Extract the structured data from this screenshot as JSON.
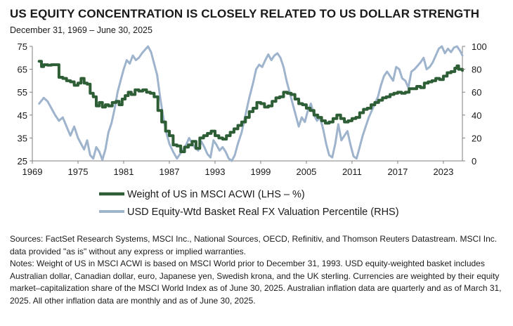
{
  "chart_data": {
    "type": "line",
    "title": "US EQUITY CONCENTRATION IS CLOSELY RELATED TO US DOLLAR STRENGTH",
    "subtitle": "December 31, 1969 – June 30, 2025",
    "x_ticks": [
      "1969",
      "1975",
      "1981",
      "1987",
      "1993",
      "1999",
      "2005",
      "2011",
      "2017",
      "2023"
    ],
    "xlim": [
      1969,
      2025.5
    ],
    "y_left": {
      "ylim": [
        25,
        75
      ],
      "ticks": [
        "25",
        "35",
        "45",
        "55",
        "65",
        "75"
      ]
    },
    "y_right": {
      "ylim": [
        0,
        100
      ],
      "ticks": [
        "0",
        "20",
        "40",
        "60",
        "80",
        "100"
      ]
    },
    "grid": false,
    "legend_position": "bottom",
    "series": [
      {
        "name": "Weight of US in MSCI ACWI (LHS – %)",
        "axis": "left",
        "color": "#2e5e35",
        "points": [
          [
            1969.9,
            68.5
          ],
          [
            1970.2,
            66.2
          ],
          [
            1970.5,
            67.0
          ],
          [
            1971.0,
            66.8
          ],
          [
            1971.5,
            67.0
          ],
          [
            1972.2,
            67.0
          ],
          [
            1972.5,
            61.5
          ],
          [
            1973.0,
            61.0
          ],
          [
            1973.5,
            60.0
          ],
          [
            1974.0,
            59.5
          ],
          [
            1974.5,
            58.0
          ],
          [
            1975.0,
            59.0
          ],
          [
            1975.4,
            61.0
          ],
          [
            1975.8,
            59.0
          ],
          [
            1976.2,
            58.5
          ],
          [
            1976.6,
            54.5
          ],
          [
            1977.0,
            53.0
          ],
          [
            1977.4,
            49.0
          ],
          [
            1977.8,
            50.5
          ],
          [
            1978.2,
            48.5
          ],
          [
            1978.6,
            49.5
          ],
          [
            1979.0,
            49.0
          ],
          [
            1979.5,
            50.5
          ],
          [
            1980.0,
            51.0
          ],
          [
            1980.4,
            49.5
          ],
          [
            1980.8,
            52.0
          ],
          [
            1981.2,
            53.5
          ],
          [
            1981.6,
            55.0
          ],
          [
            1982.0,
            54.0
          ],
          [
            1982.5,
            56.0
          ],
          [
            1983.0,
            55.5
          ],
          [
            1983.5,
            56.0
          ],
          [
            1984.0,
            55.0
          ],
          [
            1984.5,
            54.5
          ],
          [
            1985.0,
            53.0
          ],
          [
            1985.5,
            47.0
          ],
          [
            1986.0,
            42.0
          ],
          [
            1986.5,
            38.0
          ],
          [
            1987.0,
            36.0
          ],
          [
            1987.5,
            32.0
          ],
          [
            1988.0,
            31.5
          ],
          [
            1988.5,
            29.0
          ],
          [
            1989.0,
            31.0
          ],
          [
            1989.5,
            32.0
          ],
          [
            1990.0,
            33.5
          ],
          [
            1990.5,
            30.5
          ],
          [
            1991.0,
            35.0
          ],
          [
            1991.5,
            36.0
          ],
          [
            1992.0,
            37.0
          ],
          [
            1992.5,
            38.0
          ],
          [
            1993.0,
            36.0
          ],
          [
            1993.5,
            35.0
          ],
          [
            1994.0,
            34.5
          ],
          [
            1994.5,
            36.0
          ],
          [
            1995.0,
            37.5
          ],
          [
            1995.5,
            39.0
          ],
          [
            1996.0,
            40.5
          ],
          [
            1996.5,
            42.0
          ],
          [
            1997.0,
            44.0
          ],
          [
            1997.5,
            46.5
          ],
          [
            1998.0,
            48.0
          ],
          [
            1998.5,
            50.5
          ],
          [
            1999.0,
            50.0
          ],
          [
            1999.5,
            48.5
          ],
          [
            2000.0,
            49.0
          ],
          [
            2000.5,
            51.0
          ],
          [
            2001.0,
            52.5
          ],
          [
            2001.5,
            53.0
          ],
          [
            2002.0,
            55.0
          ],
          [
            2002.5,
            54.5
          ],
          [
            2003.0,
            54.0
          ],
          [
            2003.5,
            52.0
          ],
          [
            2004.0,
            50.0
          ],
          [
            2004.5,
            49.5
          ],
          [
            2005.0,
            48.0
          ],
          [
            2005.5,
            47.0
          ],
          [
            2006.0,
            45.0
          ],
          [
            2006.5,
            44.0
          ],
          [
            2007.0,
            42.5
          ],
          [
            2007.5,
            41.5
          ],
          [
            2008.0,
            42.0
          ],
          [
            2008.5,
            43.5
          ],
          [
            2009.0,
            45.0
          ],
          [
            2009.5,
            43.5
          ],
          [
            2010.0,
            42.0
          ],
          [
            2010.5,
            42.5
          ],
          [
            2011.0,
            43.5
          ],
          [
            2011.5,
            44.0
          ],
          [
            2012.0,
            46.0
          ],
          [
            2012.5,
            47.5
          ],
          [
            2013.0,
            48.0
          ],
          [
            2013.5,
            49.5
          ],
          [
            2014.0,
            50.5
          ],
          [
            2014.5,
            51.5
          ],
          [
            2015.0,
            52.5
          ],
          [
            2015.5,
            53.0
          ],
          [
            2016.0,
            54.0
          ],
          [
            2016.5,
            54.5
          ],
          [
            2017.0,
            55.0
          ],
          [
            2017.5,
            54.5
          ],
          [
            2018.0,
            55.0
          ],
          [
            2018.5,
            56.5
          ],
          [
            2019.0,
            56.5
          ],
          [
            2019.5,
            57.5
          ],
          [
            2020.0,
            57.0
          ],
          [
            2020.5,
            59.0
          ],
          [
            2021.0,
            59.5
          ],
          [
            2021.5,
            60.0
          ],
          [
            2022.0,
            61.0
          ],
          [
            2022.5,
            60.5
          ],
          [
            2023.0,
            62.0
          ],
          [
            2023.5,
            63.5
          ],
          [
            2024.0,
            64.0
          ],
          [
            2024.5,
            65.5
          ],
          [
            2024.8,
            66.5
          ],
          [
            2025.0,
            65.0
          ],
          [
            2025.5,
            64.5
          ]
        ]
      },
      {
        "name": "USD Equity-Wtd Basket Real FX Valuation Percentile (RHS)",
        "axis": "right",
        "color": "#9eb3cc",
        "points": [
          [
            1969.9,
            50
          ],
          [
            1970.5,
            55
          ],
          [
            1971.0,
            52
          ],
          [
            1971.5,
            46
          ],
          [
            1972.0,
            40
          ],
          [
            1972.5,
            35
          ],
          [
            1973.0,
            38
          ],
          [
            1973.5,
            30
          ],
          [
            1974.0,
            22
          ],
          [
            1974.5,
            30
          ],
          [
            1975.0,
            20
          ],
          [
            1975.4,
            15
          ],
          [
            1975.8,
            10
          ],
          [
            1976.2,
            18
          ],
          [
            1976.6,
            5
          ],
          [
            1977.0,
            2
          ],
          [
            1977.4,
            12
          ],
          [
            1977.8,
            8
          ],
          [
            1978.2,
            1
          ],
          [
            1978.6,
            10
          ],
          [
            1979.0,
            25
          ],
          [
            1979.4,
            33
          ],
          [
            1979.8,
            45
          ],
          [
            1980.2,
            60
          ],
          [
            1980.6,
            70
          ],
          [
            1981.0,
            80
          ],
          [
            1981.4,
            88
          ],
          [
            1981.8,
            85
          ],
          [
            1982.2,
            92
          ],
          [
            1982.6,
            88
          ],
          [
            1983.0,
            90
          ],
          [
            1983.4,
            94
          ],
          [
            1983.8,
            97
          ],
          [
            1984.2,
            100
          ],
          [
            1984.6,
            95
          ],
          [
            1985.0,
            85
          ],
          [
            1985.4,
            75
          ],
          [
            1985.8,
            55
          ],
          [
            1986.2,
            38
          ],
          [
            1986.6,
            25
          ],
          [
            1987.0,
            15
          ],
          [
            1987.5,
            8
          ],
          [
            1988.0,
            2
          ],
          [
            1988.4,
            6
          ],
          [
            1988.8,
            10
          ],
          [
            1989.2,
            14
          ],
          [
            1989.6,
            20
          ],
          [
            1990.0,
            15
          ],
          [
            1990.4,
            11
          ],
          [
            1990.8,
            9
          ],
          [
            1991.2,
            17
          ],
          [
            1991.6,
            12
          ],
          [
            1992.0,
            6
          ],
          [
            1992.4,
            3
          ],
          [
            1992.8,
            18
          ],
          [
            1993.2,
            14
          ],
          [
            1993.6,
            9
          ],
          [
            1994.0,
            12
          ],
          [
            1994.4,
            8
          ],
          [
            1994.8,
            2
          ],
          [
            1995.2,
            0
          ],
          [
            1995.6,
            5
          ],
          [
            1996.0,
            15
          ],
          [
            1996.5,
            25
          ],
          [
            1997.0,
            40
          ],
          [
            1997.5,
            55
          ],
          [
            1998.0,
            68
          ],
          [
            1998.4,
            80
          ],
          [
            1998.8,
            84
          ],
          [
            1999.2,
            82
          ],
          [
            1999.6,
            88
          ],
          [
            2000.0,
            93
          ],
          [
            2000.4,
            88
          ],
          [
            2000.8,
            92
          ],
          [
            2001.2,
            94
          ],
          [
            2001.6,
            90
          ],
          [
            2002.0,
            82
          ],
          [
            2002.4,
            70
          ],
          [
            2002.8,
            60
          ],
          [
            2003.2,
            50
          ],
          [
            2003.6,
            40
          ],
          [
            2004.0,
            30
          ],
          [
            2004.4,
            38
          ],
          [
            2004.8,
            34
          ],
          [
            2005.2,
            44
          ],
          [
            2005.6,
            50
          ],
          [
            2006.0,
            40
          ],
          [
            2006.4,
            35
          ],
          [
            2006.8,
            38
          ],
          [
            2007.2,
            28
          ],
          [
            2007.6,
            15
          ],
          [
            2008.0,
            5
          ],
          [
            2008.4,
            3
          ],
          [
            2008.8,
            15
          ],
          [
            2009.2,
            32
          ],
          [
            2009.6,
            18
          ],
          [
            2010.0,
            22
          ],
          [
            2010.4,
            26
          ],
          [
            2010.8,
            14
          ],
          [
            2011.2,
            4
          ],
          [
            2011.6,
            2
          ],
          [
            2012.0,
            12
          ],
          [
            2012.4,
            22
          ],
          [
            2012.8,
            30
          ],
          [
            2013.2,
            38
          ],
          [
            2013.6,
            44
          ],
          [
            2014.0,
            50
          ],
          [
            2014.4,
            56
          ],
          [
            2014.8,
            66
          ],
          [
            2015.2,
            74
          ],
          [
            2015.6,
            78
          ],
          [
            2016.0,
            74
          ],
          [
            2016.4,
            70
          ],
          [
            2016.8,
            82
          ],
          [
            2017.2,
            80
          ],
          [
            2017.6,
            72
          ],
          [
            2018.0,
            70
          ],
          [
            2018.4,
            64
          ],
          [
            2018.8,
            78
          ],
          [
            2019.2,
            80
          ],
          [
            2019.6,
            83
          ],
          [
            2020.0,
            86
          ],
          [
            2020.4,
            90
          ],
          [
            2020.8,
            80
          ],
          [
            2021.2,
            82
          ],
          [
            2021.6,
            86
          ],
          [
            2022.0,
            92
          ],
          [
            2022.4,
            98
          ],
          [
            2022.8,
            100
          ],
          [
            2023.2,
            94
          ],
          [
            2023.6,
            98
          ],
          [
            2024.0,
            95
          ],
          [
            2024.4,
            99
          ],
          [
            2024.8,
            100
          ],
          [
            2025.2,
            96
          ],
          [
            2025.5,
            92
          ]
        ]
      }
    ]
  },
  "footnotes": {
    "sources": "Sources: FactSet Research Systems, MSCI Inc., National Sources, OECD, Refinitiv, and Thomson Reuters Datastream. MSCI Inc. data provided \"as is\" without any express or implied warranties.",
    "notes": "Notes: Weight of US in MSCI ACWI is based on MSCI World prior to December 31, 1993. USD equity-weighted basket includes Australian dollar, Canadian dollar, euro, Japanese yen, Swedish krona, and the UK sterling. Currencies are weighted by their equity market–capitalization share of the MSCI World Index as of June 30, 2025. Australian inflation data are quarterly and as of March 31, 2025. All other inflation data are monthly and as of June 30, 2025."
  }
}
